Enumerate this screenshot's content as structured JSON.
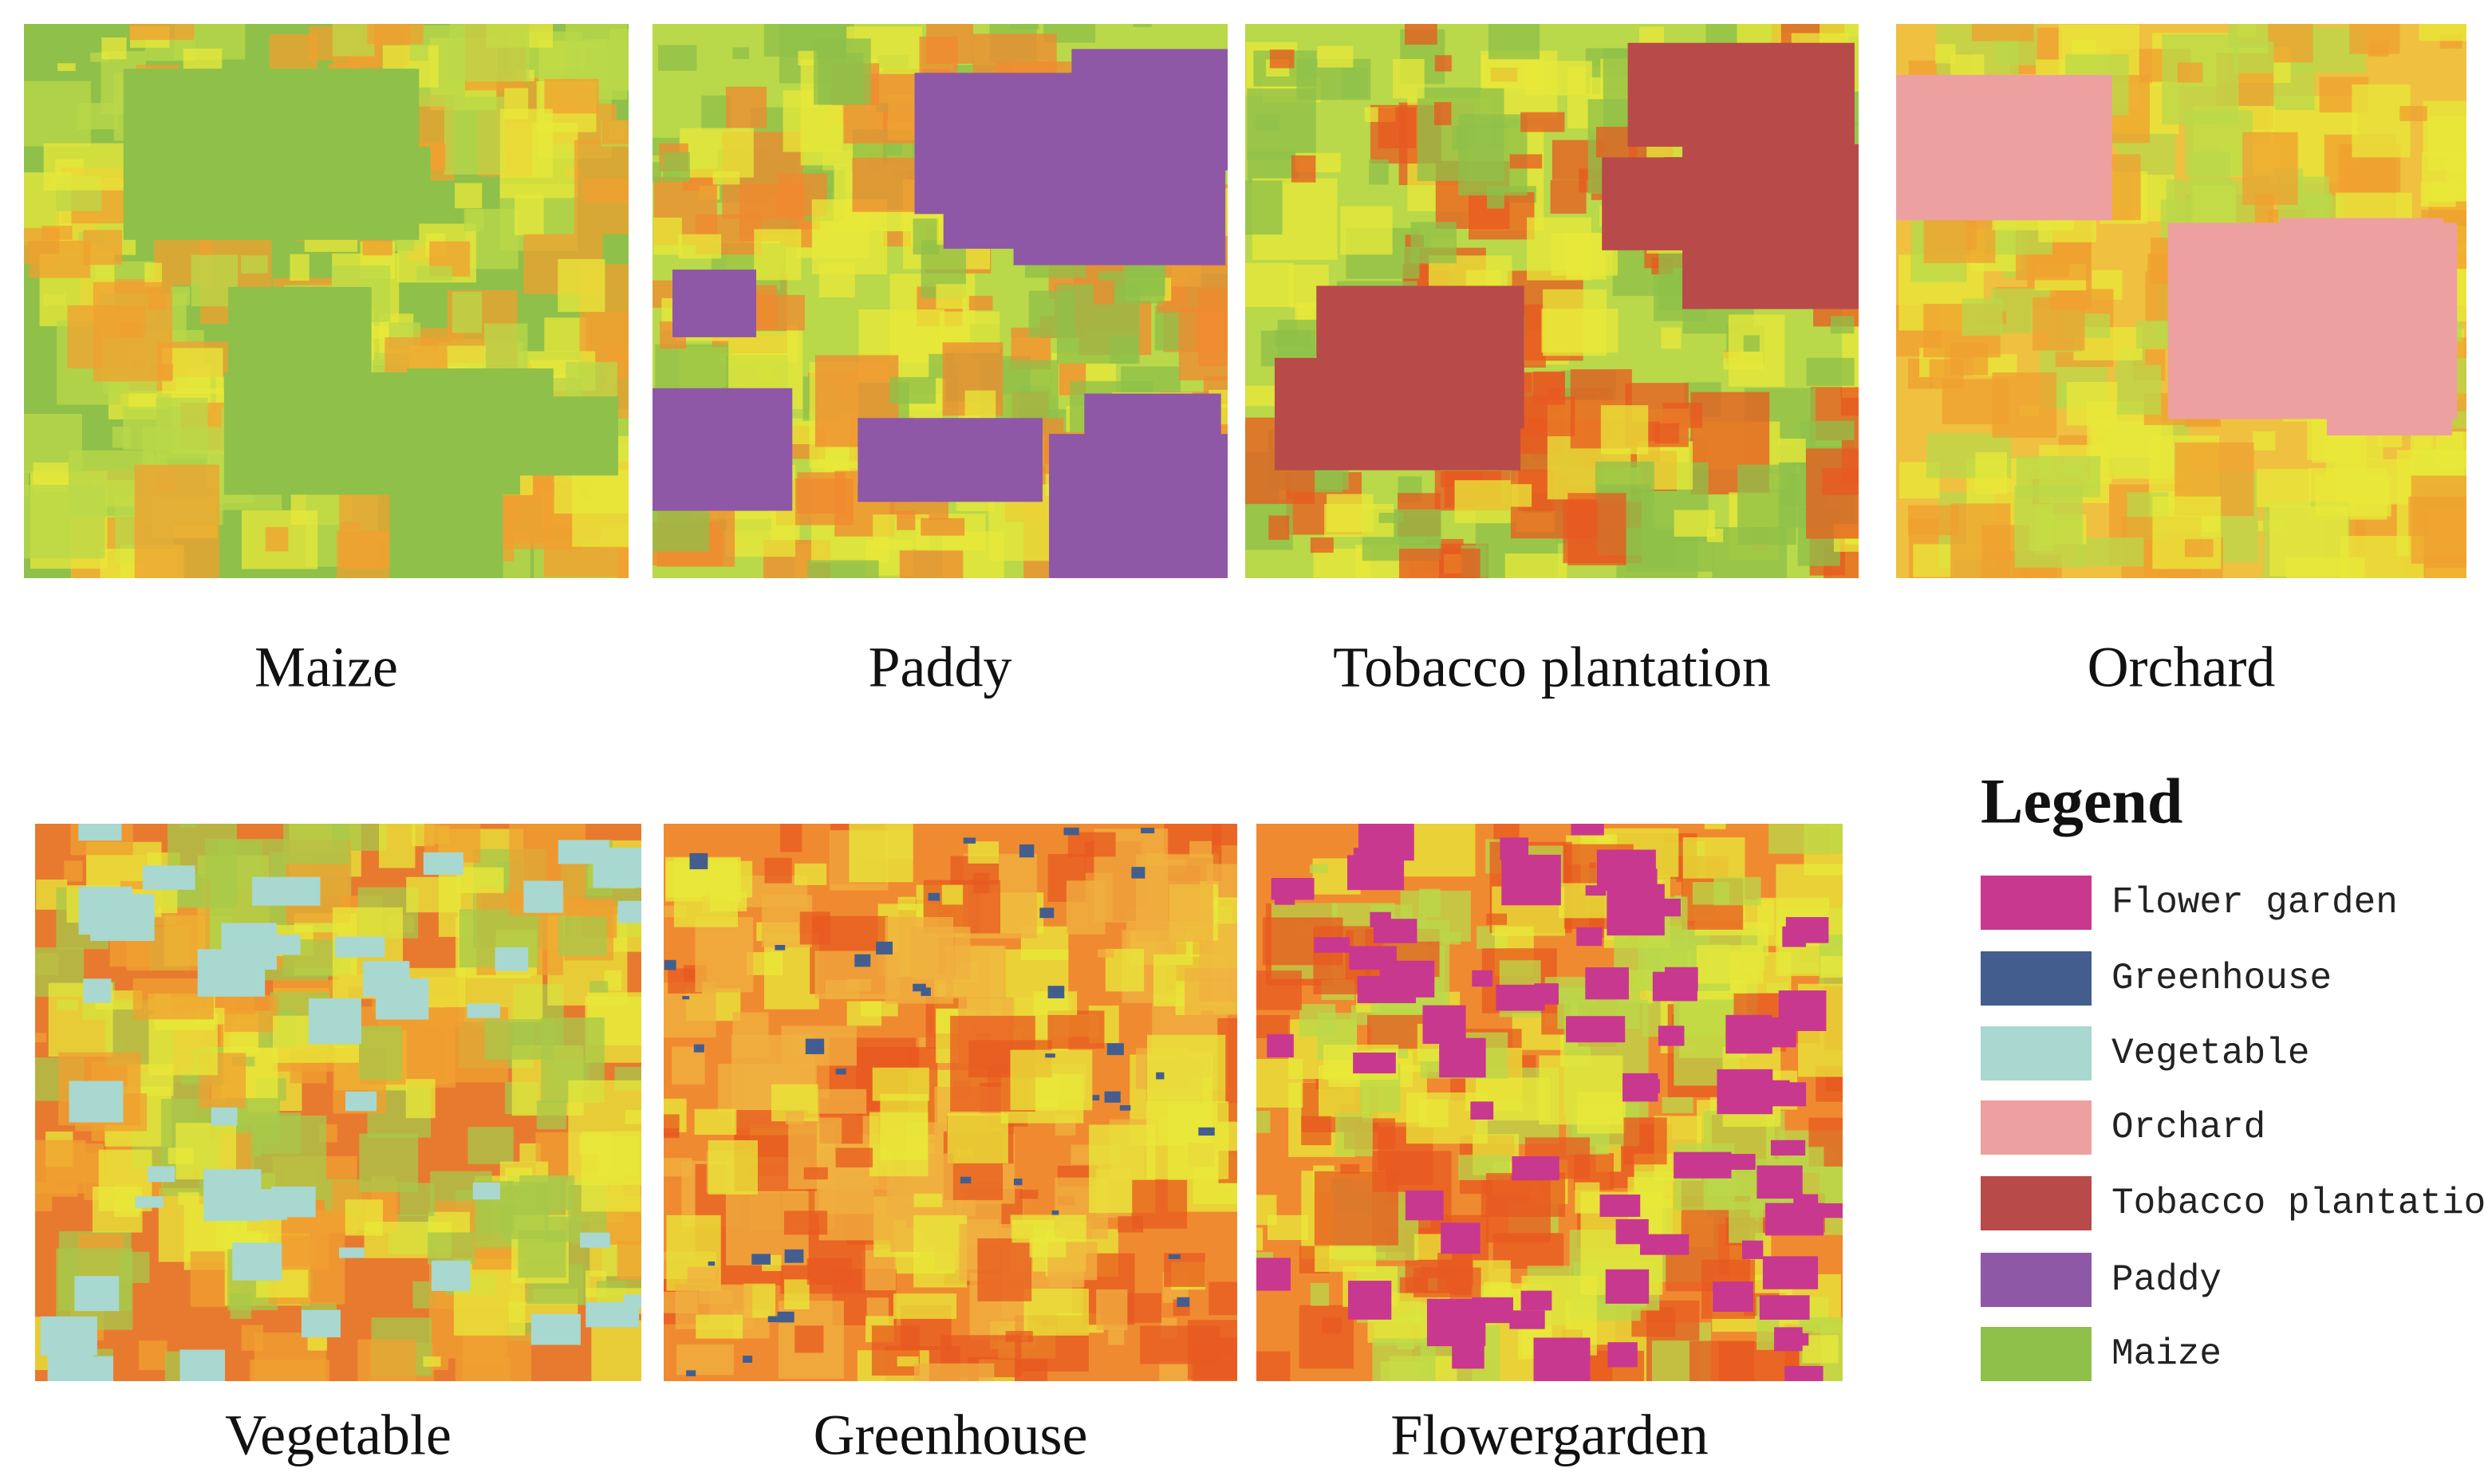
{
  "panels": [
    {
      "label": "Maize"
    },
    {
      "label": "Paddy"
    },
    {
      "label": "Tobacco plantation"
    },
    {
      "label": "Orchard"
    },
    {
      "label": "Vegetable"
    },
    {
      "label": "Greenhouse"
    },
    {
      "label": "Flowergarden"
    }
  ],
  "legend": {
    "title": "Legend",
    "items": [
      {
        "label": "Flower garden",
        "color": "#c8388f"
      },
      {
        "label": "Greenhouse",
        "color": "#435e8e"
      },
      {
        "label": "Vegetable",
        "color": "#a8d8d0"
      },
      {
        "label": "Orchard",
        "color": "#eda0a0"
      },
      {
        "label": "Tobacco plantation",
        "color": "#b84a4a"
      },
      {
        "label": "Paddy",
        "color": "#8e58a6"
      },
      {
        "label": "Maize",
        "color": "#8fc04a"
      }
    ]
  }
}
